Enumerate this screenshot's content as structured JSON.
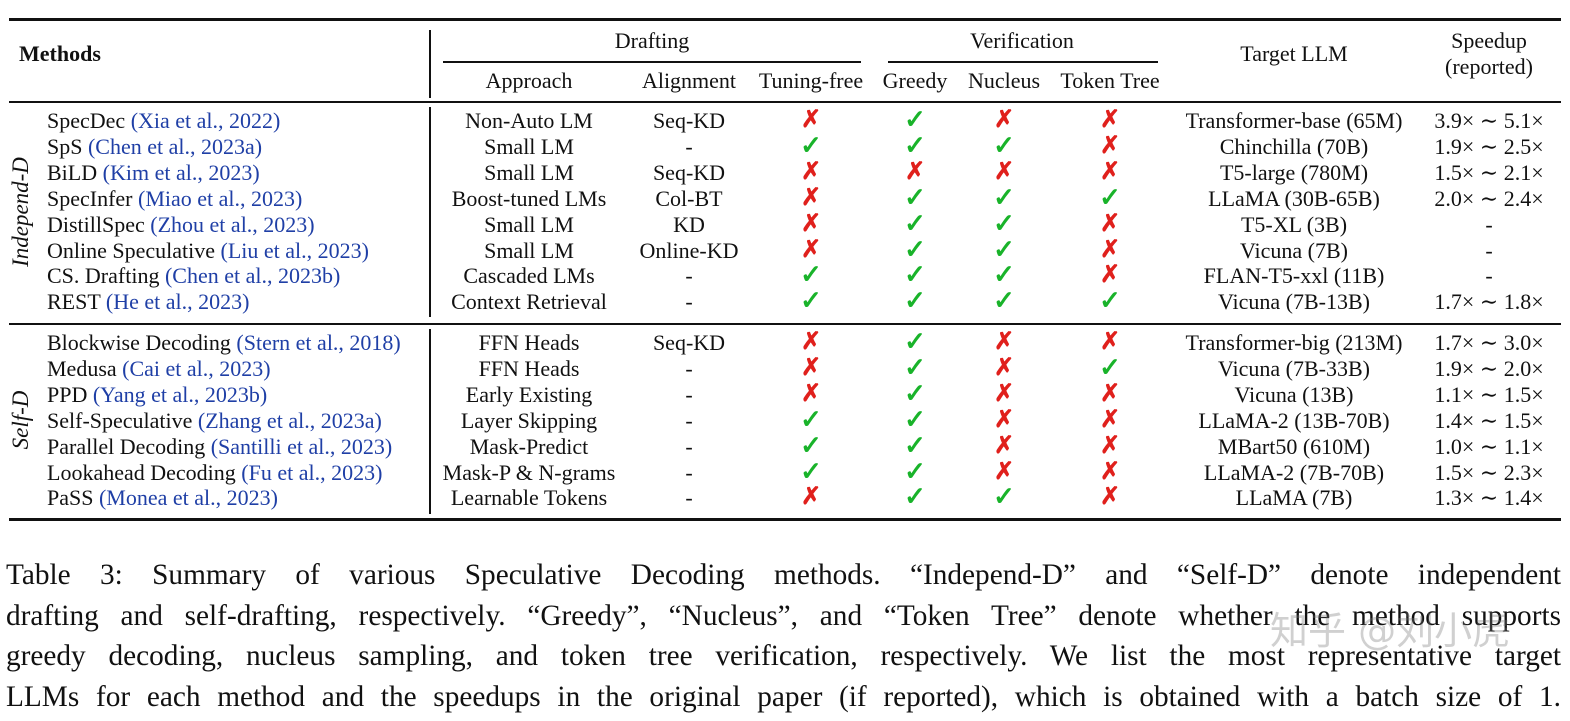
{
  "header": {
    "methods": "Methods",
    "drafting": "Drafting",
    "verification": "Verification",
    "approach": "Approach",
    "alignment": "Alignment",
    "tuning_free": "Tuning-free",
    "greedy": "Greedy",
    "nucleus": "Nucleus",
    "token_tree": "Token Tree",
    "target_llm": "Target LLM",
    "speedup_1": "Speedup",
    "speedup_2": "(reported)"
  },
  "groups": [
    {
      "label": "Independ-D",
      "rows": [
        {
          "name": "SpecDec ",
          "cite": "(Xia et al., 2022)",
          "approach": "Non-Auto LM",
          "alignment": "Seq-KD",
          "tuning_free": "✗",
          "greedy": "✓",
          "nucleus": "✗",
          "token_tree": "✗",
          "target": "Transformer-base (65M)",
          "speedup": "3.9× ∼ 5.1×"
        },
        {
          "name": "SpS ",
          "cite": "(Chen et al., 2023a)",
          "approach": "Small LM",
          "alignment": "-",
          "tuning_free": "✓",
          "greedy": "✓",
          "nucleus": "✓",
          "token_tree": "✗",
          "target": "Chinchilla (70B)",
          "speedup": "1.9× ∼ 2.5×"
        },
        {
          "name": "BiLD ",
          "cite": "(Kim et al., 2023)",
          "approach": "Small LM",
          "alignment": "Seq-KD",
          "tuning_free": "✗",
          "greedy": "✗",
          "nucleus": "✗",
          "token_tree": "✗",
          "target": "T5-large (780M)",
          "speedup": "1.5× ∼ 2.1×"
        },
        {
          "name": "SpecInfer ",
          "cite": "(Miao et al., 2023)",
          "approach": "Boost-tuned LMs",
          "alignment": "Col-BT",
          "tuning_free": "✗",
          "greedy": "✓",
          "nucleus": "✓",
          "token_tree": "✓",
          "target": "LLaMA (30B-65B)",
          "speedup": "2.0× ∼ 2.4×"
        },
        {
          "name": "DistillSpec ",
          "cite": "(Zhou et al., 2023)",
          "approach": "Small LM",
          "alignment": "KD",
          "tuning_free": "✗",
          "greedy": "✓",
          "nucleus": "✓",
          "token_tree": "✗",
          "target": "T5-XL (3B)",
          "speedup": "-"
        },
        {
          "name": "Online Speculative ",
          "cite": "(Liu et al., 2023)",
          "approach": "Small LM",
          "alignment": "Online-KD",
          "tuning_free": "✗",
          "greedy": "✓",
          "nucleus": "✓",
          "token_tree": "✗",
          "target": "Vicuna (7B)",
          "speedup": "-"
        },
        {
          "name": "CS. Drafting ",
          "cite": "(Chen et al., 2023b)",
          "approach": "Cascaded LMs",
          "alignment": "-",
          "tuning_free": "✓",
          "greedy": "✓",
          "nucleus": "✓",
          "token_tree": "✗",
          "target": "FLAN-T5-xxl (11B)",
          "speedup": "-"
        },
        {
          "name": "REST ",
          "cite": "(He et al., 2023)",
          "approach": "Context Retrieval",
          "alignment": "-",
          "tuning_free": "✓",
          "greedy": "✓",
          "nucleus": "✓",
          "token_tree": "✓",
          "target": "Vicuna (7B-13B)",
          "speedup": "1.7× ∼ 1.8×"
        }
      ]
    },
    {
      "label": "Self-D",
      "rows": [
        {
          "name": "Blockwise Decoding ",
          "cite": "(Stern et al., 2018)",
          "approach": "FFN Heads",
          "alignment": "Seq-KD",
          "tuning_free": "✗",
          "greedy": "✓",
          "nucleus": "✗",
          "token_tree": "✗",
          "target": "Transformer-big (213M)",
          "speedup": "1.7× ∼ 3.0×"
        },
        {
          "name": "Medusa ",
          "cite": "(Cai et al., 2023)",
          "approach": "FFN Heads",
          "alignment": "-",
          "tuning_free": "✗",
          "greedy": "✓",
          "nucleus": "✗",
          "token_tree": "✓",
          "target": "Vicuna (7B-33B)",
          "speedup": "1.9× ∼ 2.0×"
        },
        {
          "name": "PPD ",
          "cite": "(Yang et al., 2023b)",
          "approach": "Early Existing",
          "alignment": "-",
          "tuning_free": "✗",
          "greedy": "✓",
          "nucleus": "✗",
          "token_tree": "✗",
          "target": "Vicuna (13B)",
          "speedup": "1.1× ∼ 1.5×"
        },
        {
          "name": "Self-Speculative ",
          "cite": "(Zhang et al., 2023a)",
          "approach": "Layer Skipping",
          "alignment": "-",
          "tuning_free": "✓",
          "greedy": "✓",
          "nucleus": "✗",
          "token_tree": "✗",
          "target": "LLaMA-2 (13B-70B)",
          "speedup": "1.4× ∼ 1.5×"
        },
        {
          "name": "Parallel Decoding ",
          "cite": "(Santilli et al., 2023)",
          "approach": "Mask-Predict",
          "alignment": "-",
          "tuning_free": "✓",
          "greedy": "✓",
          "nucleus": "✗",
          "token_tree": "✗",
          "target": "MBart50 (610M)",
          "speedup": "1.0× ∼ 1.1×"
        },
        {
          "name": "Lookahead Decoding ",
          "cite": "(Fu et al., 2023)",
          "approach": "Mask-P & N-grams",
          "alignment": "-",
          "tuning_free": "✓",
          "greedy": "✓",
          "nucleus": "✗",
          "token_tree": "✗",
          "target": "LLaMA-2 (7B-70B)",
          "speedup": "1.5× ∼ 2.3×"
        },
        {
          "name": "PaSS ",
          "cite": "(Monea et al., 2023)",
          "approach": "Learnable Tokens",
          "alignment": "-",
          "tuning_free": "✗",
          "greedy": "✓",
          "nucleus": "✓",
          "token_tree": "✗",
          "target": "LLaMA (7B)",
          "speedup": "1.3× ∼ 1.4×"
        }
      ]
    }
  ],
  "caption": {
    "line1": "Table 3: Summary of various Speculative Decoding methods. “Independ-D” and “Self-D” denote independent",
    "line2": "drafting and self-drafting, respectively. “Greedy”, “Nucleus”, and “Token Tree” denote whether the method supports",
    "line3": "greedy decoding, nucleus sampling, and token tree verification, respectively. We list the most representative target",
    "line4": "LLMs for each method and the speedups in the original paper (if reported), which is obtained with a batch size of 1."
  },
  "watermark": "知乎 @刘小虎"
}
